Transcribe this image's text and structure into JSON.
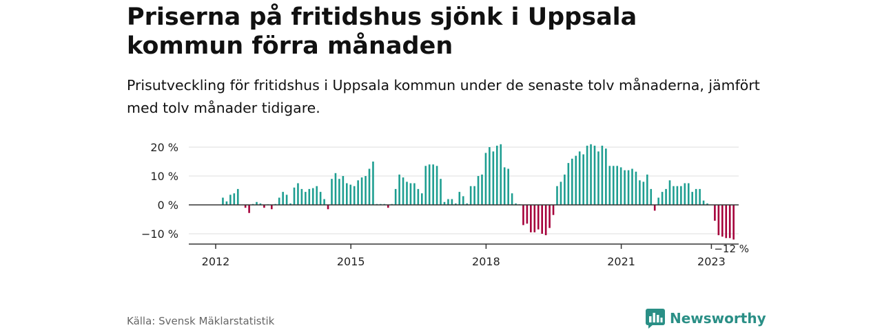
{
  "header": {
    "title": "Priserna på fritidshus sjönk i Uppsala kommun förra månaden",
    "subtitle": "Prisutveckling för fritidshus i Uppsala kommun under de senaste tolv månaderna, jämfört med tolv månader tidigare."
  },
  "footer": {
    "source": "Källa: Svensk Mäklarstatistik",
    "brand": "Newsworthy",
    "brand_icon": "bar-chart-speech-bubble-icon"
  },
  "colors": {
    "positive": "#1e9e91",
    "negative": "#a5003a",
    "axis": "#333333",
    "grid": "#dddddd",
    "brand": "#2a8f86"
  },
  "chart_data": {
    "type": "bar",
    "title": "",
    "xlabel": "",
    "ylabel": "",
    "ylim": [
      -14,
      22
    ],
    "y_ticks": [
      {
        "value": 20,
        "label": "20 %"
      },
      {
        "value": 10,
        "label": "10 %"
      },
      {
        "value": 0,
        "label": "0 %"
      },
      {
        "value": -10,
        "label": "−10 %"
      }
    ],
    "x_ticks": [
      {
        "value": "2012-01",
        "label": "2012"
      },
      {
        "value": "2015-01",
        "label": "2015"
      },
      {
        "value": "2018-01",
        "label": "2018"
      },
      {
        "value": "2021-01",
        "label": "2021"
      },
      {
        "value": "2023-01",
        "label": "2023"
      }
    ],
    "first_month": "2012-01",
    "last_value_label": "−12 %",
    "grid": true,
    "values": [
      0,
      2.5,
      1.2,
      3.5,
      4.0,
      5.5,
      0,
      -1.0,
      -2.8,
      0.3,
      1.0,
      0.5,
      -1.0,
      0.2,
      -1.5,
      0.3,
      2.5,
      4.5,
      3.5,
      0.5,
      6.0,
      7.5,
      5.5,
      4.5,
      5.5,
      5.8,
      6.5,
      4.5,
      2.0,
      -1.5,
      9.0,
      11.0,
      9.0,
      10.0,
      7.5,
      7.0,
      6.5,
      8.5,
      9.5,
      10.0,
      12.5,
      15.0,
      0.3,
      0.3,
      0.3,
      -1.0,
      0.3,
      5.5,
      10.5,
      9.5,
      8.0,
      7.5,
      7.5,
      5.5,
      4.0,
      13.5,
      14.0,
      14.0,
      13.5,
      9.0,
      1.0,
      2.0,
      2.0,
      0.5,
      4.5,
      3.0,
      0.5,
      6.5,
      6.5,
      10.0,
      10.5,
      18.0,
      20.0,
      18.5,
      20.5,
      21.0,
      13.0,
      12.5,
      4.0,
      0.5,
      0.2,
      -7.0,
      -6.5,
      -9.5,
      -9.5,
      -8.5,
      -10.0,
      -10.5,
      -8.0,
      -3.5,
      6.5,
      8.0,
      10.5,
      14.5,
      16.0,
      17.0,
      18.5,
      17.5,
      20.5,
      21.0,
      20.5,
      18.5,
      20.5,
      19.5,
      13.5,
      13.5,
      13.5,
      13.0,
      12.0,
      12.0,
      12.5,
      11.5,
      8.5,
      8.0,
      10.5,
      5.5,
      -2.0,
      2.5,
      4.5,
      5.5,
      8.5,
      6.5,
      6.5,
      6.5,
      7.5,
      7.5,
      4.5,
      5.5,
      5.5,
      1.5,
      0.5,
      0.1,
      -5.5,
      -10.5,
      -11.0,
      -11.5,
      -11.5,
      -12.0
    ]
  }
}
